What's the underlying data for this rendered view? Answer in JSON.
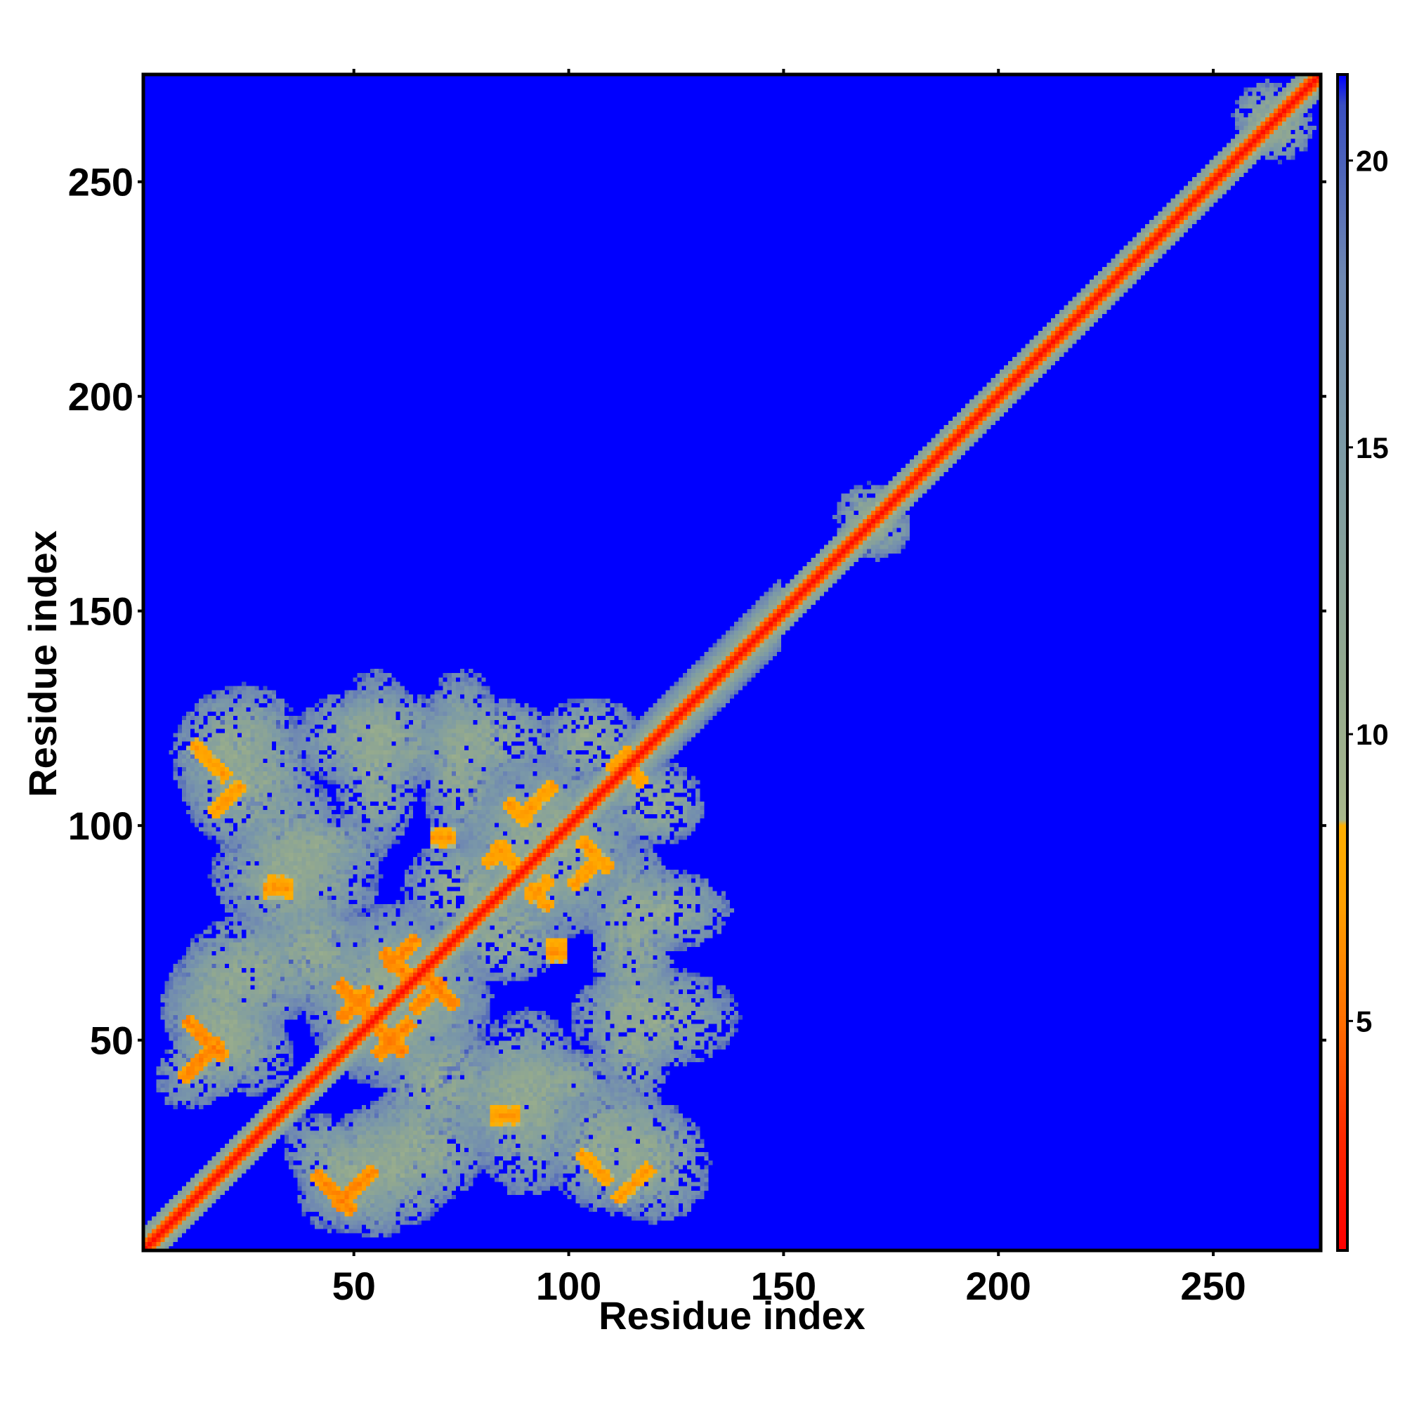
{
  "chart_data": {
    "type": "heatmap",
    "title": "",
    "xlabel": "Residue index",
    "ylabel": "Residue index",
    "n_residues": 275,
    "xlim": [
      1,
      275
    ],
    "ylim": [
      1,
      275
    ],
    "xticks": [
      50,
      100,
      150,
      200,
      250
    ],
    "yticks": [
      50,
      100,
      150,
      200,
      250
    ],
    "colorbar": {
      "range": [
        1,
        21.5
      ],
      "ticks": [
        5,
        10,
        15,
        20
      ],
      "stops": [
        {
          "value": 1,
          "color": "#ff0000"
        },
        {
          "value": 3,
          "color": "#ff2a00"
        },
        {
          "value": 5,
          "color": "#ff7000"
        },
        {
          "value": 7,
          "color": "#ffa000"
        },
        {
          "value": 8.4,
          "color": "#ffb000"
        },
        {
          "value": 8.5,
          "color": "#a9b88c"
        },
        {
          "value": 11,
          "color": "#93a98e"
        },
        {
          "value": 15,
          "color": "#7c9aa6"
        },
        {
          "value": 18,
          "color": "#6f88b2"
        },
        {
          "value": 21,
          "color": "#3a4fc0"
        },
        {
          "value": 21.5,
          "color": "#0000ff"
        }
      ]
    },
    "background_value": 21.5,
    "diagonal_band": {
      "from": 1,
      "to": 275,
      "center_value": 1.5,
      "contact_halfwidth": 2.5,
      "halo_halfwidth": 5
    },
    "contact_blobs": [
      {
        "x": 16,
        "y": 115,
        "angle": -45,
        "length": 12,
        "width": 3,
        "value": 6
      },
      {
        "x": 15,
        "y": 50,
        "angle": -45,
        "length": 14,
        "width": 3,
        "value": 5
      },
      {
        "x": 45,
        "y": 14,
        "angle": -45,
        "length": 14,
        "width": 3,
        "value": 5
      },
      {
        "x": 32,
        "y": 85,
        "angle": 0,
        "length": 6,
        "width": 4,
        "value": 6
      },
      {
        "x": 60,
        "y": 67,
        "angle": -45,
        "length": 10,
        "width": 3,
        "value": 5
      },
      {
        "x": 50,
        "y": 59,
        "angle": -45,
        "length": 12,
        "width": 3,
        "value": 5
      },
      {
        "x": 70,
        "y": 61,
        "angle": -45,
        "length": 10,
        "width": 3,
        "value": 5
      },
      {
        "x": 58,
        "y": 50,
        "angle": -45,
        "length": 10,
        "width": 3,
        "value": 5
      },
      {
        "x": 88,
        "y": 103,
        "angle": -45,
        "length": 8,
        "width": 3,
        "value": 6
      },
      {
        "x": 106,
        "y": 93,
        "angle": -45,
        "length": 10,
        "width": 3,
        "value": 6
      },
      {
        "x": 85,
        "y": 93,
        "angle": -45,
        "length": 8,
        "width": 3,
        "value": 6
      },
      {
        "x": 93,
        "y": 83,
        "angle": -45,
        "length": 8,
        "width": 3,
        "value": 6
      },
      {
        "x": 70,
        "y": 97,
        "angle": 0,
        "length": 4,
        "width": 4,
        "value": 6
      },
      {
        "x": 97,
        "y": 71,
        "angle": 0,
        "length": 4,
        "width": 4,
        "value": 6
      },
      {
        "x": 86,
        "y": 32,
        "angle": 0,
        "length": 4,
        "width": 4,
        "value": 6
      },
      {
        "x": 106,
        "y": 20,
        "angle": -45,
        "length": 10,
        "width": 3,
        "value": 6
      },
      {
        "x": 115,
        "y": 112,
        "angle": -45,
        "length": 8,
        "width": 3,
        "value": 6
      }
    ],
    "halo_regions": [
      {
        "x": 22,
        "y": 118,
        "rx": 14,
        "ry": 16,
        "angle": -45
      },
      {
        "x": 20,
        "y": 52,
        "rx": 18,
        "ry": 12,
        "angle": -45
      },
      {
        "x": 48,
        "y": 18,
        "rx": 18,
        "ry": 10,
        "angle": -45
      },
      {
        "x": 36,
        "y": 88,
        "rx": 20,
        "ry": 14,
        "angle": 0
      },
      {
        "x": 55,
        "y": 115,
        "rx": 10,
        "ry": 22,
        "angle": 0
      },
      {
        "x": 75,
        "y": 115,
        "rx": 10,
        "ry": 22,
        "angle": 0
      },
      {
        "x": 25,
        "y": 65,
        "rx": 16,
        "ry": 14,
        "angle": 0
      },
      {
        "x": 60,
        "y": 60,
        "rx": 22,
        "ry": 22,
        "angle": 0
      },
      {
        "x": 95,
        "y": 95,
        "rx": 22,
        "ry": 22,
        "angle": 0
      },
      {
        "x": 120,
        "y": 80,
        "rx": 18,
        "ry": 10,
        "angle": 0
      },
      {
        "x": 120,
        "y": 55,
        "rx": 20,
        "ry": 12,
        "angle": 0
      },
      {
        "x": 90,
        "y": 35,
        "rx": 14,
        "ry": 22,
        "angle": 0
      },
      {
        "x": 110,
        "y": 25,
        "rx": 16,
        "ry": 16,
        "angle": -45
      },
      {
        "x": 60,
        "y": 20,
        "rx": 14,
        "ry": 14,
        "angle": 0
      },
      {
        "x": 120,
        "y": 105,
        "rx": 12,
        "ry": 10,
        "angle": 0
      },
      {
        "x": 85,
        "y": 75,
        "rx": 14,
        "ry": 12,
        "angle": 0
      },
      {
        "x": 40,
        "y": 95,
        "rx": 18,
        "ry": 8,
        "angle": 0
      },
      {
        "x": 70,
        "y": 40,
        "rx": 14,
        "ry": 14,
        "angle": 0
      },
      {
        "x": 170,
        "y": 172,
        "rx": 8,
        "ry": 8,
        "angle": 0
      },
      {
        "x": 263,
        "y": 266,
        "rx": 8,
        "ry": 8,
        "angle": 0
      }
    ]
  }
}
